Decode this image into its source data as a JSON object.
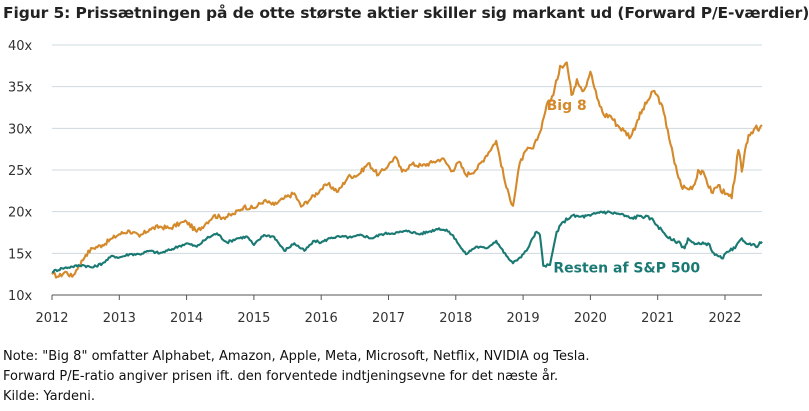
{
  "title": "Figur 5: Prissætningen på de otte største aktier skiller sig markant ud (Forward P/E-værdier)",
  "notes": [
    "Note: \"Big 8\" omfatter Alphabet, Amazon, Apple, Meta, Microsoft, Netflix, NVIDIA og Tesla.",
    "Forward P/E-ratio angiver prisen ift. den forventede indtjeningsevne for det næste år.",
    "Kilde: Yardeni."
  ],
  "chart_data": {
    "type": "line",
    "title": "",
    "xlabel": "",
    "ylabel": "",
    "xlim": [
      2012.0,
      2022.55
    ],
    "ylim": [
      10,
      40
    ],
    "x_ticks": [
      "2012",
      "2013",
      "2014",
      "2015",
      "2016",
      "2017",
      "2018",
      "2019",
      "2020",
      "2021",
      "2022"
    ],
    "y_ticks": [
      "10x",
      "15x",
      "20x",
      "25x",
      "30x",
      "35x",
      "40x"
    ],
    "y_tick_values": [
      10,
      15,
      20,
      25,
      30,
      35,
      40
    ],
    "grid": "horizontal",
    "colors": {
      "big8": "#d4892b",
      "rest": "#1a7a73",
      "grid": "#cfd8de",
      "axis": "#555555"
    },
    "series": [
      {
        "name": "Big 8",
        "label_anchor": [
          2019.35,
          32.2
        ],
        "x": [
          2012.0,
          2012.1,
          2012.2,
          2012.3,
          2012.4,
          2012.5,
          2012.6,
          2012.75,
          2012.9,
          2013.0,
          2013.15,
          2013.3,
          2013.45,
          2013.6,
          2013.75,
          2013.9,
          2014.0,
          2014.15,
          2014.3,
          2014.4,
          2014.55,
          2014.7,
          2014.85,
          2015.0,
          2015.15,
          2015.3,
          2015.45,
          2015.6,
          2015.7,
          2015.85,
          2016.0,
          2016.1,
          2016.25,
          2016.4,
          2016.55,
          2016.7,
          2016.85,
          2017.0,
          2017.1,
          2017.2,
          2017.35,
          2017.5,
          2017.65,
          2017.8,
          2017.95,
          2018.05,
          2018.15,
          2018.3,
          2018.45,
          2018.6,
          2018.75,
          2018.85,
          2018.95,
          2019.05,
          2019.15,
          2019.25,
          2019.35,
          2019.45,
          2019.55,
          2019.65,
          2019.72,
          2019.8,
          2019.9,
          2020.0,
          2020.1,
          2020.2,
          2020.3,
          2020.4,
          2020.5,
          2020.6,
          2020.7,
          2020.85,
          2020.95,
          2021.05,
          2021.15,
          2021.25,
          2021.35,
          2021.45,
          2021.55,
          2021.6,
          2021.7,
          2021.8,
          2021.9,
          2022.0,
          2022.1,
          2022.2,
          2022.25,
          2022.3,
          2022.35,
          2022.45,
          2022.5,
          2022.55
        ],
        "values": [
          12.5,
          12.2,
          12.8,
          12.2,
          13.5,
          14.8,
          15.6,
          16.0,
          16.8,
          17.3,
          17.7,
          17.0,
          17.9,
          18.2,
          18.0,
          18.6,
          18.8,
          17.6,
          18.7,
          19.5,
          19.3,
          19.7,
          20.6,
          20.4,
          21.3,
          20.8,
          21.6,
          22.2,
          20.6,
          21.6,
          22.7,
          23.3,
          22.4,
          24.2,
          24.4,
          25.8,
          24.4,
          25.6,
          26.6,
          24.8,
          25.7,
          25.5,
          25.9,
          26.4,
          24.9,
          26.0,
          24.4,
          25.0,
          26.7,
          28.5,
          22.9,
          20.7,
          25.8,
          27.4,
          27.6,
          29.5,
          32.8,
          34.0,
          37.5,
          37.9,
          34.0,
          35.9,
          34.5,
          36.8,
          33.6,
          31.6,
          31.5,
          30.4,
          29.7,
          29.0,
          31.0,
          33.3,
          34.5,
          33.0,
          29.8,
          25.8,
          23.1,
          22.7,
          23.3,
          25.0,
          24.3,
          22.3,
          23.2,
          22.1,
          21.6,
          27.4,
          24.8,
          27.5,
          29.2,
          30.1,
          29.7,
          30.4
        ]
      },
      {
        "name": "Resten af S&P 500",
        "label_anchor": [
          2019.45,
          12.7
        ],
        "x": [
          2012.0,
          2012.15,
          2012.3,
          2012.45,
          2012.6,
          2012.75,
          2012.9,
          2013.0,
          2013.15,
          2013.3,
          2013.45,
          2013.6,
          2013.75,
          2013.9,
          2014.0,
          2014.15,
          2014.3,
          2014.45,
          2014.6,
          2014.75,
          2014.9,
          2015.0,
          2015.15,
          2015.3,
          2015.45,
          2015.6,
          2015.75,
          2015.9,
          2016.0,
          2016.15,
          2016.3,
          2016.45,
          2016.6,
          2016.75,
          2016.9,
          2017.0,
          2017.15,
          2017.3,
          2017.45,
          2017.6,
          2017.75,
          2017.9,
          2018.0,
          2018.08,
          2018.15,
          2018.3,
          2018.45,
          2018.6,
          2018.75,
          2018.85,
          2018.95,
          2019.05,
          2019.15,
          2019.2,
          2019.25,
          2019.3,
          2019.4,
          2019.5,
          2019.6,
          2019.72,
          2019.85,
          2020.0,
          2020.15,
          2020.3,
          2020.45,
          2020.6,
          2020.75,
          2020.9,
          2021.0,
          2021.1,
          2021.2,
          2021.3,
          2021.4,
          2021.45,
          2021.55,
          2021.65,
          2021.75,
          2021.85,
          2021.95,
          2022.05,
          2022.15,
          2022.25,
          2022.35,
          2022.45,
          2022.5,
          2022.55
        ],
        "values": [
          12.8,
          13.2,
          13.4,
          13.6,
          13.3,
          13.8,
          14.7,
          14.5,
          14.9,
          14.9,
          15.3,
          15.0,
          15.4,
          15.9,
          16.2,
          15.8,
          16.8,
          17.4,
          16.3,
          16.8,
          17.0,
          16.0,
          17.2,
          17.0,
          15.3,
          16.2,
          15.3,
          16.5,
          16.3,
          16.9,
          17.0,
          16.9,
          17.2,
          16.8,
          17.3,
          17.4,
          17.5,
          17.7,
          17.3,
          17.6,
          18.0,
          17.6,
          16.7,
          15.6,
          14.9,
          15.8,
          15.6,
          16.5,
          14.7,
          13.8,
          14.5,
          15.3,
          16.9,
          17.6,
          17.2,
          13.5,
          13.6,
          17.6,
          18.8,
          19.5,
          19.4,
          19.5,
          20.0,
          19.9,
          19.7,
          19.2,
          19.5,
          19.2,
          18.3,
          17.4,
          16.6,
          16.4,
          15.6,
          16.8,
          16.1,
          16.1,
          16.2,
          14.8,
          14.4,
          15.2,
          15.6,
          16.8,
          16.1,
          15.9,
          16.0,
          16.4
        ]
      }
    ]
  }
}
